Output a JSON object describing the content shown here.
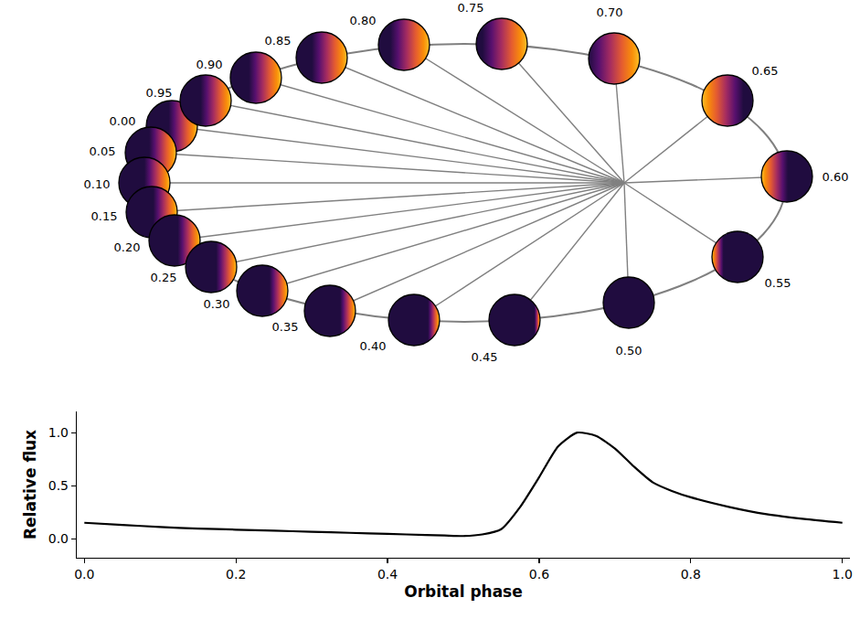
{
  "chart_data": {
    "type": "line",
    "xlabel": "Orbital phase",
    "ylabel": "Relative flux",
    "x": [
      0.0,
      0.05,
      0.1,
      0.15,
      0.2,
      0.25,
      0.3,
      0.35,
      0.4,
      0.45,
      0.475,
      0.5,
      0.525,
      0.55,
      0.575,
      0.6,
      0.625,
      0.65,
      0.675,
      0.7,
      0.725,
      0.75,
      0.775,
      0.8,
      0.85,
      0.9,
      0.95,
      1.0
    ],
    "values": [
      0.15,
      0.13,
      0.11,
      0.095,
      0.085,
      0.075,
      0.065,
      0.055,
      0.045,
      0.035,
      0.03,
      0.025,
      0.04,
      0.09,
      0.3,
      0.58,
      0.87,
      1.0,
      0.97,
      0.85,
      0.68,
      0.53,
      0.45,
      0.39,
      0.3,
      0.23,
      0.185,
      0.15
    ],
    "color": "#000000",
    "xlim": [
      -0.01,
      1.01
    ],
    "xticks": [
      {
        "value": 0,
        "label": "0.0"
      },
      {
        "value": 0.2,
        "label": "0.2"
      },
      {
        "value": 0.4,
        "label": "0.4"
      },
      {
        "value": 0.6,
        "label": "0.6"
      },
      {
        "value": 0.8,
        "label": "0.8"
      },
      {
        "value": 1,
        "label": "1.0"
      }
    ],
    "ylim": [
      -0.18,
      1.2
    ],
    "yticks": [
      {
        "value": 0,
        "label": "0.0"
      },
      {
        "value": 0.5,
        "label": "0.5"
      },
      {
        "value": 1,
        "label": "1.0"
      }
    ],
    "grid": false
  },
  "orbit_diagram": {
    "phases": [
      {
        "value": 0.0,
        "label": "0.00"
      },
      {
        "value": 0.05,
        "label": "0.05"
      },
      {
        "value": 0.1,
        "label": "0.10"
      },
      {
        "value": 0.15,
        "label": "0.15"
      },
      {
        "value": 0.2,
        "label": "0.20"
      },
      {
        "value": 0.25,
        "label": "0.25"
      },
      {
        "value": 0.3,
        "label": "0.30"
      },
      {
        "value": 0.35,
        "label": "0.35"
      },
      {
        "value": 0.4,
        "label": "0.40"
      },
      {
        "value": 0.45,
        "label": "0.45"
      },
      {
        "value": 0.5,
        "label": "0.50"
      },
      {
        "value": 0.55,
        "label": "0.55"
      },
      {
        "value": 0.6,
        "label": "0.60"
      },
      {
        "value": 0.65,
        "label": "0.65"
      },
      {
        "value": 0.7,
        "label": "0.70"
      },
      {
        "value": 0.75,
        "label": "0.75"
      },
      {
        "value": 0.8,
        "label": "0.80"
      },
      {
        "value": 0.85,
        "label": "0.85"
      },
      {
        "value": 0.9,
        "label": "0.90"
      },
      {
        "value": 0.95,
        "label": "0.95"
      }
    ]
  }
}
